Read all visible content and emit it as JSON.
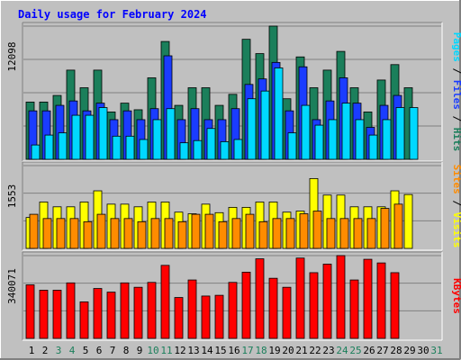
{
  "title": "Daily usage for February 2024",
  "colors": {
    "background": "#c0c0c0",
    "panel": "#c0c0c0",
    "gridline": "#808080",
    "hits": "#1b7f5b",
    "files": "#1a3cff",
    "pages": "#00d8ff",
    "visits": "#ffff00",
    "sites": "#ff8c00",
    "kbytes": "#ff0000",
    "title": "#0000ff",
    "weekend_day": "#1b7f5b"
  },
  "chart_data": [
    {
      "type": "bar",
      "panel": "top",
      "ytick": "12098",
      "ymax": 12098,
      "grid": true,
      "right_label": [
        {
          "text": "Pages",
          "color": "#00d8ff"
        },
        {
          "text": " / ",
          "color": "#000000"
        },
        {
          "text": "Files",
          "color": "#1a3cff"
        },
        {
          "text": " / ",
          "color": "#000000"
        },
        {
          "text": "Hits",
          "color": "#1b7f5b"
        }
      ],
      "categories": [
        "1",
        "2",
        "3",
        "4",
        "5",
        "6",
        "7",
        "8",
        "9",
        "10",
        "11",
        "12",
        "13",
        "14",
        "15",
        "16",
        "17",
        "18",
        "19",
        "20",
        "21",
        "22",
        "23",
        "24",
        "25",
        "26",
        "27",
        "28",
        "29",
        "30",
        "31"
      ],
      "series": [
        {
          "name": "Hits",
          "color": "#1b7f5b",
          "values": [
            5200,
            5200,
            5800,
            8100,
            6500,
            8100,
            4300,
            5100,
            4500,
            7400,
            10700,
            4900,
            6500,
            6500,
            4900,
            5900,
            10900,
            9600,
            12098,
            5500,
            9300,
            6500,
            8100,
            9800,
            6500,
            4300,
            7200,
            8600,
            6500,
            null,
            null
          ]
        },
        {
          "name": "Files",
          "color": "#1a3cff",
          "values": [
            4400,
            4400,
            4900,
            5300,
            4400,
            5100,
            3600,
            4400,
            3600,
            4600,
            9400,
            3600,
            4600,
            3600,
            3600,
            4600,
            6800,
            7300,
            8800,
            4400,
            8400,
            3600,
            5300,
            7400,
            5100,
            2900,
            4900,
            5800,
            null,
            null,
            null
          ]
        },
        {
          "name": "Pages",
          "color": "#00d8ff",
          "values": [
            1300,
            2200,
            2400,
            4000,
            4000,
            4700,
            2100,
            2100,
            1800,
            3600,
            4600,
            1500,
            1700,
            2800,
            1600,
            1800,
            5500,
            6200,
            8300,
            2400,
            4900,
            3100,
            3600,
            5100,
            3600,
            2200,
            3600,
            4700,
            4700,
            null,
            null
          ]
        }
      ]
    },
    {
      "type": "bar",
      "panel": "middle",
      "ytick": "1553",
      "ymax": 1553,
      "grid": true,
      "right_label": [
        {
          "text": "Sites",
          "color": "#ff8c00"
        },
        {
          "text": " / ",
          "color": "#000000"
        },
        {
          "text": "Visits",
          "color": "#ffff00"
        }
      ],
      "categories": [
        "1",
        "2",
        "3",
        "4",
        "5",
        "6",
        "7",
        "8",
        "9",
        "10",
        "11",
        "12",
        "13",
        "14",
        "15",
        "16",
        "17",
        "18",
        "19",
        "20",
        "21",
        "22",
        "23",
        "24",
        "25",
        "26",
        "27",
        "28",
        "29",
        "30",
        "31"
      ],
      "series": [
        {
          "name": "Visits",
          "color": "#ffff00",
          "values": [
            580,
            870,
            780,
            780,
            870,
            1080,
            830,
            830,
            780,
            870,
            870,
            680,
            650,
            830,
            670,
            770,
            770,
            870,
            870,
            680,
            700,
            1310,
            1000,
            1000,
            780,
            780,
            780,
            1080,
            1010,
            null,
            null
          ]
        },
        {
          "name": "Sites",
          "color": "#ff8c00",
          "values": [
            640,
            560,
            560,
            560,
            500,
            640,
            560,
            560,
            500,
            560,
            560,
            500,
            640,
            640,
            500,
            560,
            640,
            500,
            560,
            560,
            650,
            700,
            560,
            560,
            560,
            560,
            750,
            830,
            null,
            null,
            null
          ]
        }
      ]
    },
    {
      "type": "bar",
      "panel": "bottom",
      "ytick": "340071",
      "ymax": 340071,
      "grid": true,
      "right_label": [
        {
          "text": "KBytes",
          "color": "#ff0000"
        }
      ],
      "categories": [
        "1",
        "2",
        "3",
        "4",
        "5",
        "6",
        "7",
        "8",
        "9",
        "10",
        "11",
        "12",
        "13",
        "14",
        "15",
        "16",
        "17",
        "18",
        "19",
        "20",
        "21",
        "22",
        "23",
        "24",
        "25",
        "26",
        "27",
        "28",
        "29",
        "30",
        "31"
      ],
      "series": [
        {
          "name": "KBytes",
          "color": "#ff0000",
          "values": [
            220000,
            198000,
            198000,
            228000,
            150000,
            205000,
            190000,
            228000,
            210000,
            230000,
            300000,
            168000,
            240000,
            174000,
            177000,
            230000,
            272000,
            327000,
            247000,
            210000,
            330000,
            270000,
            305000,
            340071,
            240000,
            325000,
            310000,
            270000,
            null,
            null,
            null
          ]
        }
      ]
    }
  ],
  "x_axis": {
    "days": [
      {
        "label": "1",
        "color": "#000000"
      },
      {
        "label": "2",
        "color": "#000000"
      },
      {
        "label": "3",
        "color": "#1b7f5b"
      },
      {
        "label": "4",
        "color": "#1b7f5b"
      },
      {
        "label": "5",
        "color": "#000000"
      },
      {
        "label": "6",
        "color": "#000000"
      },
      {
        "label": "7",
        "color": "#000000"
      },
      {
        "label": "8",
        "color": "#000000"
      },
      {
        "label": "9",
        "color": "#000000"
      },
      {
        "label": "10",
        "color": "#1b7f5b"
      },
      {
        "label": "11",
        "color": "#1b7f5b"
      },
      {
        "label": "12",
        "color": "#000000"
      },
      {
        "label": "13",
        "color": "#000000"
      },
      {
        "label": "14",
        "color": "#000000"
      },
      {
        "label": "15",
        "color": "#000000"
      },
      {
        "label": "16",
        "color": "#000000"
      },
      {
        "label": "17",
        "color": "#1b7f5b"
      },
      {
        "label": "18",
        "color": "#1b7f5b"
      },
      {
        "label": "19",
        "color": "#000000"
      },
      {
        "label": "20",
        "color": "#000000"
      },
      {
        "label": "21",
        "color": "#000000"
      },
      {
        "label": "22",
        "color": "#000000"
      },
      {
        "label": "23",
        "color": "#000000"
      },
      {
        "label": "24",
        "color": "#1b7f5b"
      },
      {
        "label": "25",
        "color": "#1b7f5b"
      },
      {
        "label": "26",
        "color": "#000000"
      },
      {
        "label": "27",
        "color": "#000000"
      },
      {
        "label": "28",
        "color": "#000000"
      },
      {
        "label": "29",
        "color": "#000000"
      },
      {
        "label": "30",
        "color": "#000000"
      },
      {
        "label": "31",
        "color": "#1b7f5b"
      }
    ]
  }
}
